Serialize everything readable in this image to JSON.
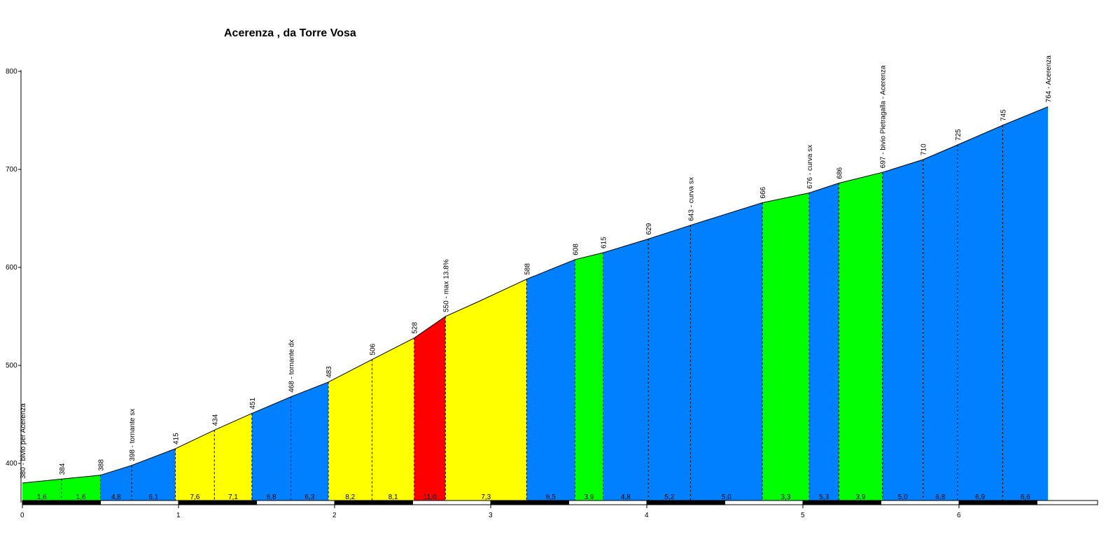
{
  "chart_data": {
    "type": "area",
    "title": "Acerenza , da Torre Vosa",
    "xlabel": "",
    "ylabel": "",
    "xlim": [
      0,
      6.57
    ],
    "ylim": [
      360,
      800
    ],
    "x_ticks": [
      "0",
      "1",
      "2",
      "3",
      "4",
      "5",
      "6"
    ],
    "y_ticks": [
      "400",
      "500",
      "600",
      "700",
      "800"
    ],
    "grid": false,
    "points": [
      {
        "x": 0.0,
        "y": 380,
        "label": "380 - bivio per Acerenza"
      },
      {
        "x": 0.25,
        "y": 384,
        "label": "384"
      },
      {
        "x": 0.5,
        "y": 388,
        "label": "388"
      },
      {
        "x": 0.7,
        "y": 398,
        "label": "398 - tornante sx"
      },
      {
        "x": 0.98,
        "y": 415,
        "label": "415"
      },
      {
        "x": 1.23,
        "y": 434,
        "label": "434"
      },
      {
        "x": 1.47,
        "y": 451,
        "label": "451"
      },
      {
        "x": 1.72,
        "y": 468,
        "label": "468 - tornante dx"
      },
      {
        "x": 1.96,
        "y": 483,
        "label": "483"
      },
      {
        "x": 2.24,
        "y": 506,
        "label": "506"
      },
      {
        "x": 2.51,
        "y": 528,
        "label": "528"
      },
      {
        "x": 2.71,
        "y": 550,
        "label": "550 - max  13.8%"
      },
      {
        "x": 2.92,
        "y": 565,
        "label": ""
      },
      {
        "x": 3.23,
        "y": 588,
        "label": "588"
      },
      {
        "x": 3.54,
        "y": 608,
        "label": "608"
      },
      {
        "x": 3.72,
        "y": 615,
        "label": "615"
      },
      {
        "x": 4.01,
        "y": 629,
        "label": "629"
      },
      {
        "x": 4.28,
        "y": 643,
        "label": "643 - curva sx"
      },
      {
        "x": 4.74,
        "y": 666,
        "label": "666"
      },
      {
        "x": 5.04,
        "y": 676,
        "label": "676 - curva sx"
      },
      {
        "x": 5.23,
        "y": 686,
        "label": "686"
      },
      {
        "x": 5.51,
        "y": 697,
        "label": "697 - bivio Pietragalla - Acerenza"
      },
      {
        "x": 5.77,
        "y": 710,
        "label": "710"
      },
      {
        "x": 5.99,
        "y": 725,
        "label": "725"
      },
      {
        "x": 6.28,
        "y": 745,
        "label": "745"
      },
      {
        "x": 6.57,
        "y": 764,
        "label": "764 - Acerenza"
      }
    ],
    "segments": [
      {
        "x0": 0.0,
        "x1": 0.25,
        "gradient": "1,6",
        "color": "#00ff00"
      },
      {
        "x0": 0.25,
        "x1": 0.5,
        "gradient": "1,6",
        "color": "#00ff00"
      },
      {
        "x0": 0.5,
        "x1": 0.7,
        "gradient": "4,8",
        "color": "#0080ff"
      },
      {
        "x0": 0.7,
        "x1": 0.98,
        "gradient": "6,1",
        "color": "#0080ff"
      },
      {
        "x0": 0.98,
        "x1": 1.23,
        "gradient": "7,6",
        "color": "#ffff00"
      },
      {
        "x0": 1.23,
        "x1": 1.47,
        "gradient": "7,1",
        "color": "#ffff00"
      },
      {
        "x0": 1.47,
        "x1": 1.72,
        "gradient": "6,8",
        "color": "#0080ff"
      },
      {
        "x0": 1.72,
        "x1": 1.96,
        "gradient": "6,3",
        "color": "#0080ff"
      },
      {
        "x0": 1.96,
        "x1": 2.24,
        "gradient": "8,2",
        "color": "#ffff00"
      },
      {
        "x0": 2.24,
        "x1": 2.51,
        "gradient": "8,1",
        "color": "#ffff00"
      },
      {
        "x0": 2.51,
        "x1": 2.71,
        "gradient": "11,0",
        "color": "#ff0000"
      },
      {
        "x0": 2.71,
        "x1": 3.23,
        "gradient": "7,3",
        "color": "#ffff00"
      },
      {
        "x0": 3.23,
        "x1": 3.54,
        "gradient": "6,5",
        "color": "#0080ff"
      },
      {
        "x0": 3.54,
        "x1": 3.72,
        "gradient": "3,9",
        "color": "#00ff00"
      },
      {
        "x0": 3.72,
        "x1": 4.01,
        "gradient": "4,8",
        "color": "#0080ff"
      },
      {
        "x0": 4.01,
        "x1": 4.28,
        "gradient": "5,2",
        "color": "#0080ff"
      },
      {
        "x0": 4.28,
        "x1": 4.74,
        "gradient": "5,0",
        "color": "#0080ff"
      },
      {
        "x0": 4.74,
        "x1": 5.04,
        "gradient": "3,3",
        "color": "#00ff00"
      },
      {
        "x0": 5.04,
        "x1": 5.23,
        "gradient": "5,3",
        "color": "#0080ff"
      },
      {
        "x0": 5.23,
        "x1": 5.51,
        "gradient": "3,9",
        "color": "#00ff00"
      },
      {
        "x0": 5.51,
        "x1": 5.77,
        "gradient": "5,0",
        "color": "#0080ff"
      },
      {
        "x0": 5.77,
        "x1": 5.99,
        "gradient": "6,8",
        "color": "#0080ff"
      },
      {
        "x0": 5.99,
        "x1": 6.28,
        "gradient": "6,9",
        "color": "#0080ff"
      },
      {
        "x0": 6.28,
        "x1": 6.57,
        "gradient": "6,6",
        "color": "#0080ff"
      }
    ]
  }
}
